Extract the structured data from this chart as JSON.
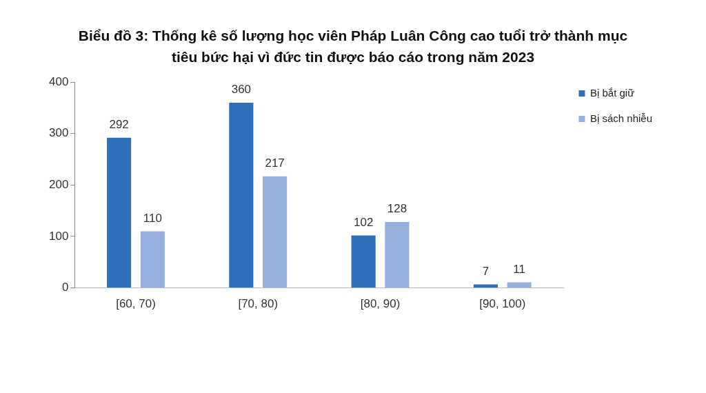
{
  "chart_data": {
    "type": "bar",
    "title": "Biểu đồ 3: Thống kê số lượng học viên Pháp Luân Công cao tuổi trở thành mục tiêu bức hại vì đức tin được báo cáo trong năm 2023",
    "categories": [
      "[60, 70)",
      "[70, 80)",
      "[80, 90)",
      "[90, 100)"
    ],
    "series": [
      {
        "name": "Bị bắt giữ",
        "color": "#2e6fba",
        "values": [
          292,
          360,
          102,
          7
        ]
      },
      {
        "name": "Bị sách nhiễu",
        "color": "#97afdc",
        "values": [
          110,
          217,
          128,
          11
        ]
      }
    ],
    "ylim": [
      0,
      400
    ],
    "yticks": [
      0,
      100,
      200,
      300,
      400
    ],
    "grid": false,
    "legend": "top right",
    "data_labels": true
  }
}
